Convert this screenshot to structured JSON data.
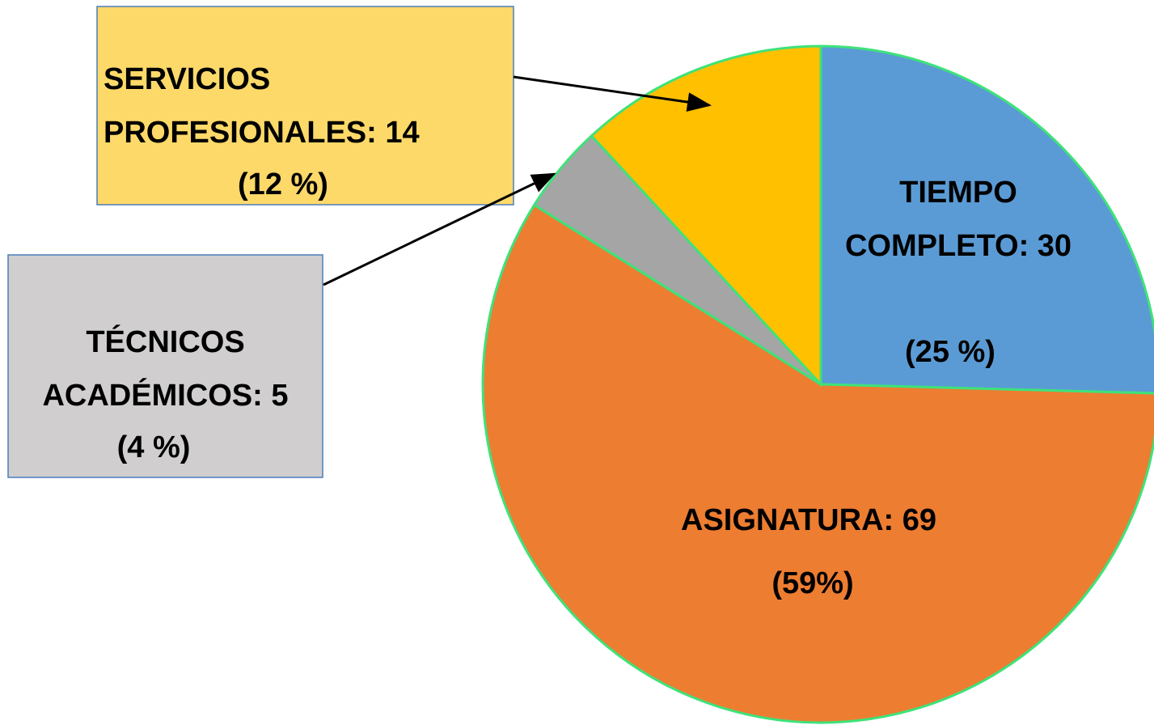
{
  "chart_data": {
    "type": "pie",
    "values": [
      30,
      69,
      5,
      14
    ],
    "value_labels": [
      "TIEMPO COMPLETO: 30",
      "ASIGNATURA: 69",
      "TÉCNICOS ACADÉMICOS: 5",
      "SERVICIOS PROFESIONALES: 14"
    ],
    "percents": [
      25,
      59,
      4,
      12
    ],
    "percent_labels": [
      "(25 %)",
      "(59%)",
      "(4 %)",
      "(12 %)"
    ],
    "colors": [
      "#5b9bd5",
      "#ed7d31",
      "#a5a5a5",
      "#ffc000"
    ],
    "edge_color": "#3ee27a"
  }
}
